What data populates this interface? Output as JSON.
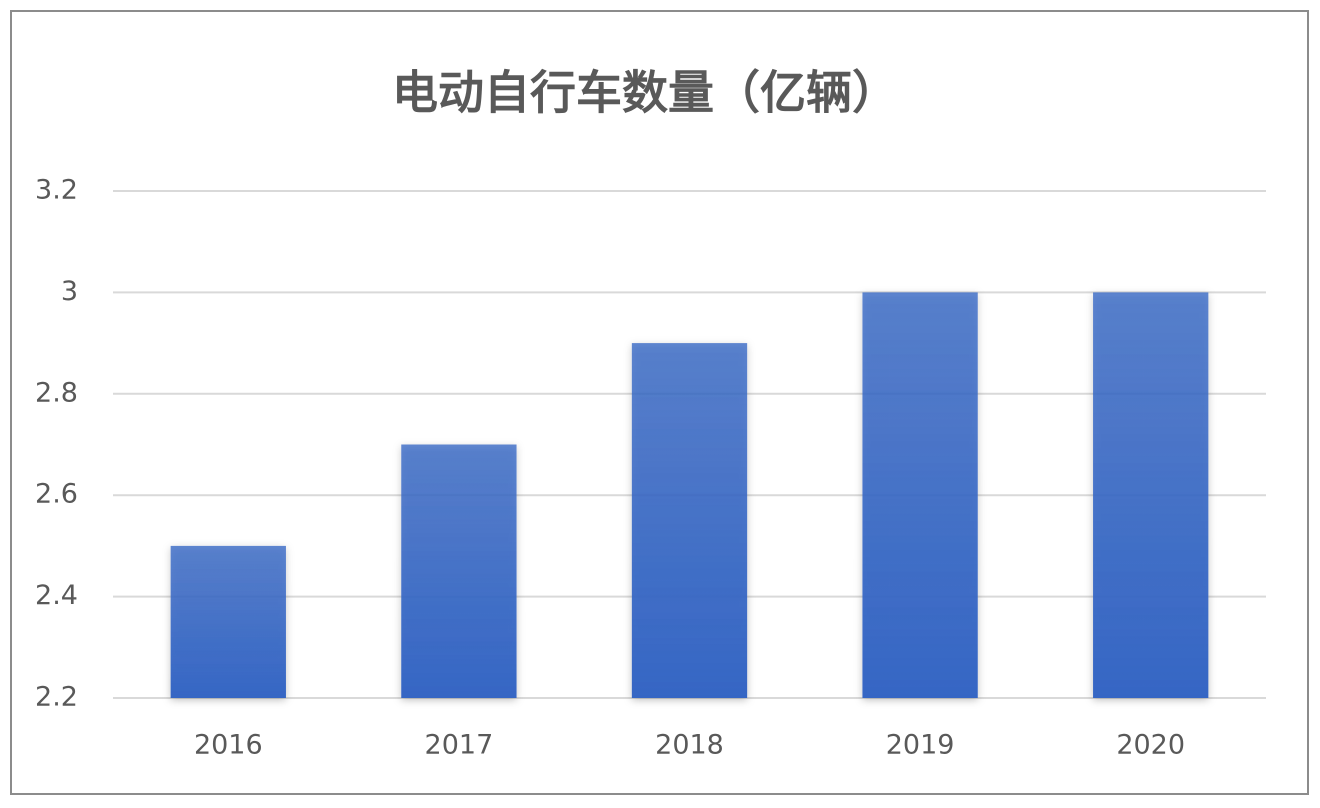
{
  "chart_data": {
    "type": "bar",
    "title": "电动自行车数量（亿辆）",
    "categories": [
      "2016",
      "2017",
      "2018",
      "2019",
      "2020"
    ],
    "values": [
      2.5,
      2.7,
      2.9,
      3.0,
      3.0
    ],
    "color": "#3566c4",
    "ylim": [
      2.2,
      3.2
    ],
    "yticks": [
      2.2,
      2.4,
      2.6,
      2.8,
      3,
      3.2
    ],
    "grid": true
  }
}
